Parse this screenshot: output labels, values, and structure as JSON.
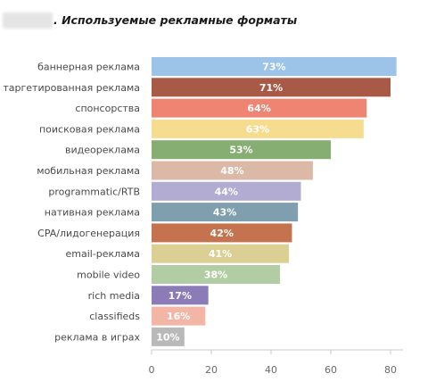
{
  "title": ". Используемые рекламные форматы",
  "chart_data": {
    "type": "bar",
    "orientation": "horizontal",
    "title": ". Используемые рекламные форматы",
    "xlabel": "",
    "ylabel": "",
    "xlim": [
      0,
      90
    ],
    "xticks": [
      0,
      20,
      40,
      60,
      80
    ],
    "grid": false,
    "categories": [
      "баннерная реклама",
      "таргетированная реклама",
      "спонсорства",
      "поисковая реклама",
      "видеореклама",
      "мобильная реклама",
      "programmatic/RTB",
      "нативная реклама",
      "CPA/лидогенерация",
      "email-реклама",
      "mobile video",
      "rich media",
      "classifieds",
      "реклама в играх"
    ],
    "values": [
      82,
      80,
      72,
      71,
      60,
      54,
      50,
      49,
      47,
      46,
      43,
      19,
      18,
      11
    ],
    "data_labels": [
      "73%",
      "71%",
      "64%",
      "63%",
      "53%",
      "48%",
      "44%",
      "43%",
      "42%",
      "41%",
      "38%",
      "17%",
      "16%",
      "10%"
    ],
    "colors": [
      "#9cc3e8",
      "#a85a46",
      "#f08473",
      "#f5dc8f",
      "#86ae72",
      "#dcb8a6",
      "#b2abd2",
      "#7f9fae",
      "#c4734e",
      "#dccf94",
      "#b2cda4",
      "#8b7cb8",
      "#f3b6a6",
      "#b9b9b9"
    ]
  }
}
